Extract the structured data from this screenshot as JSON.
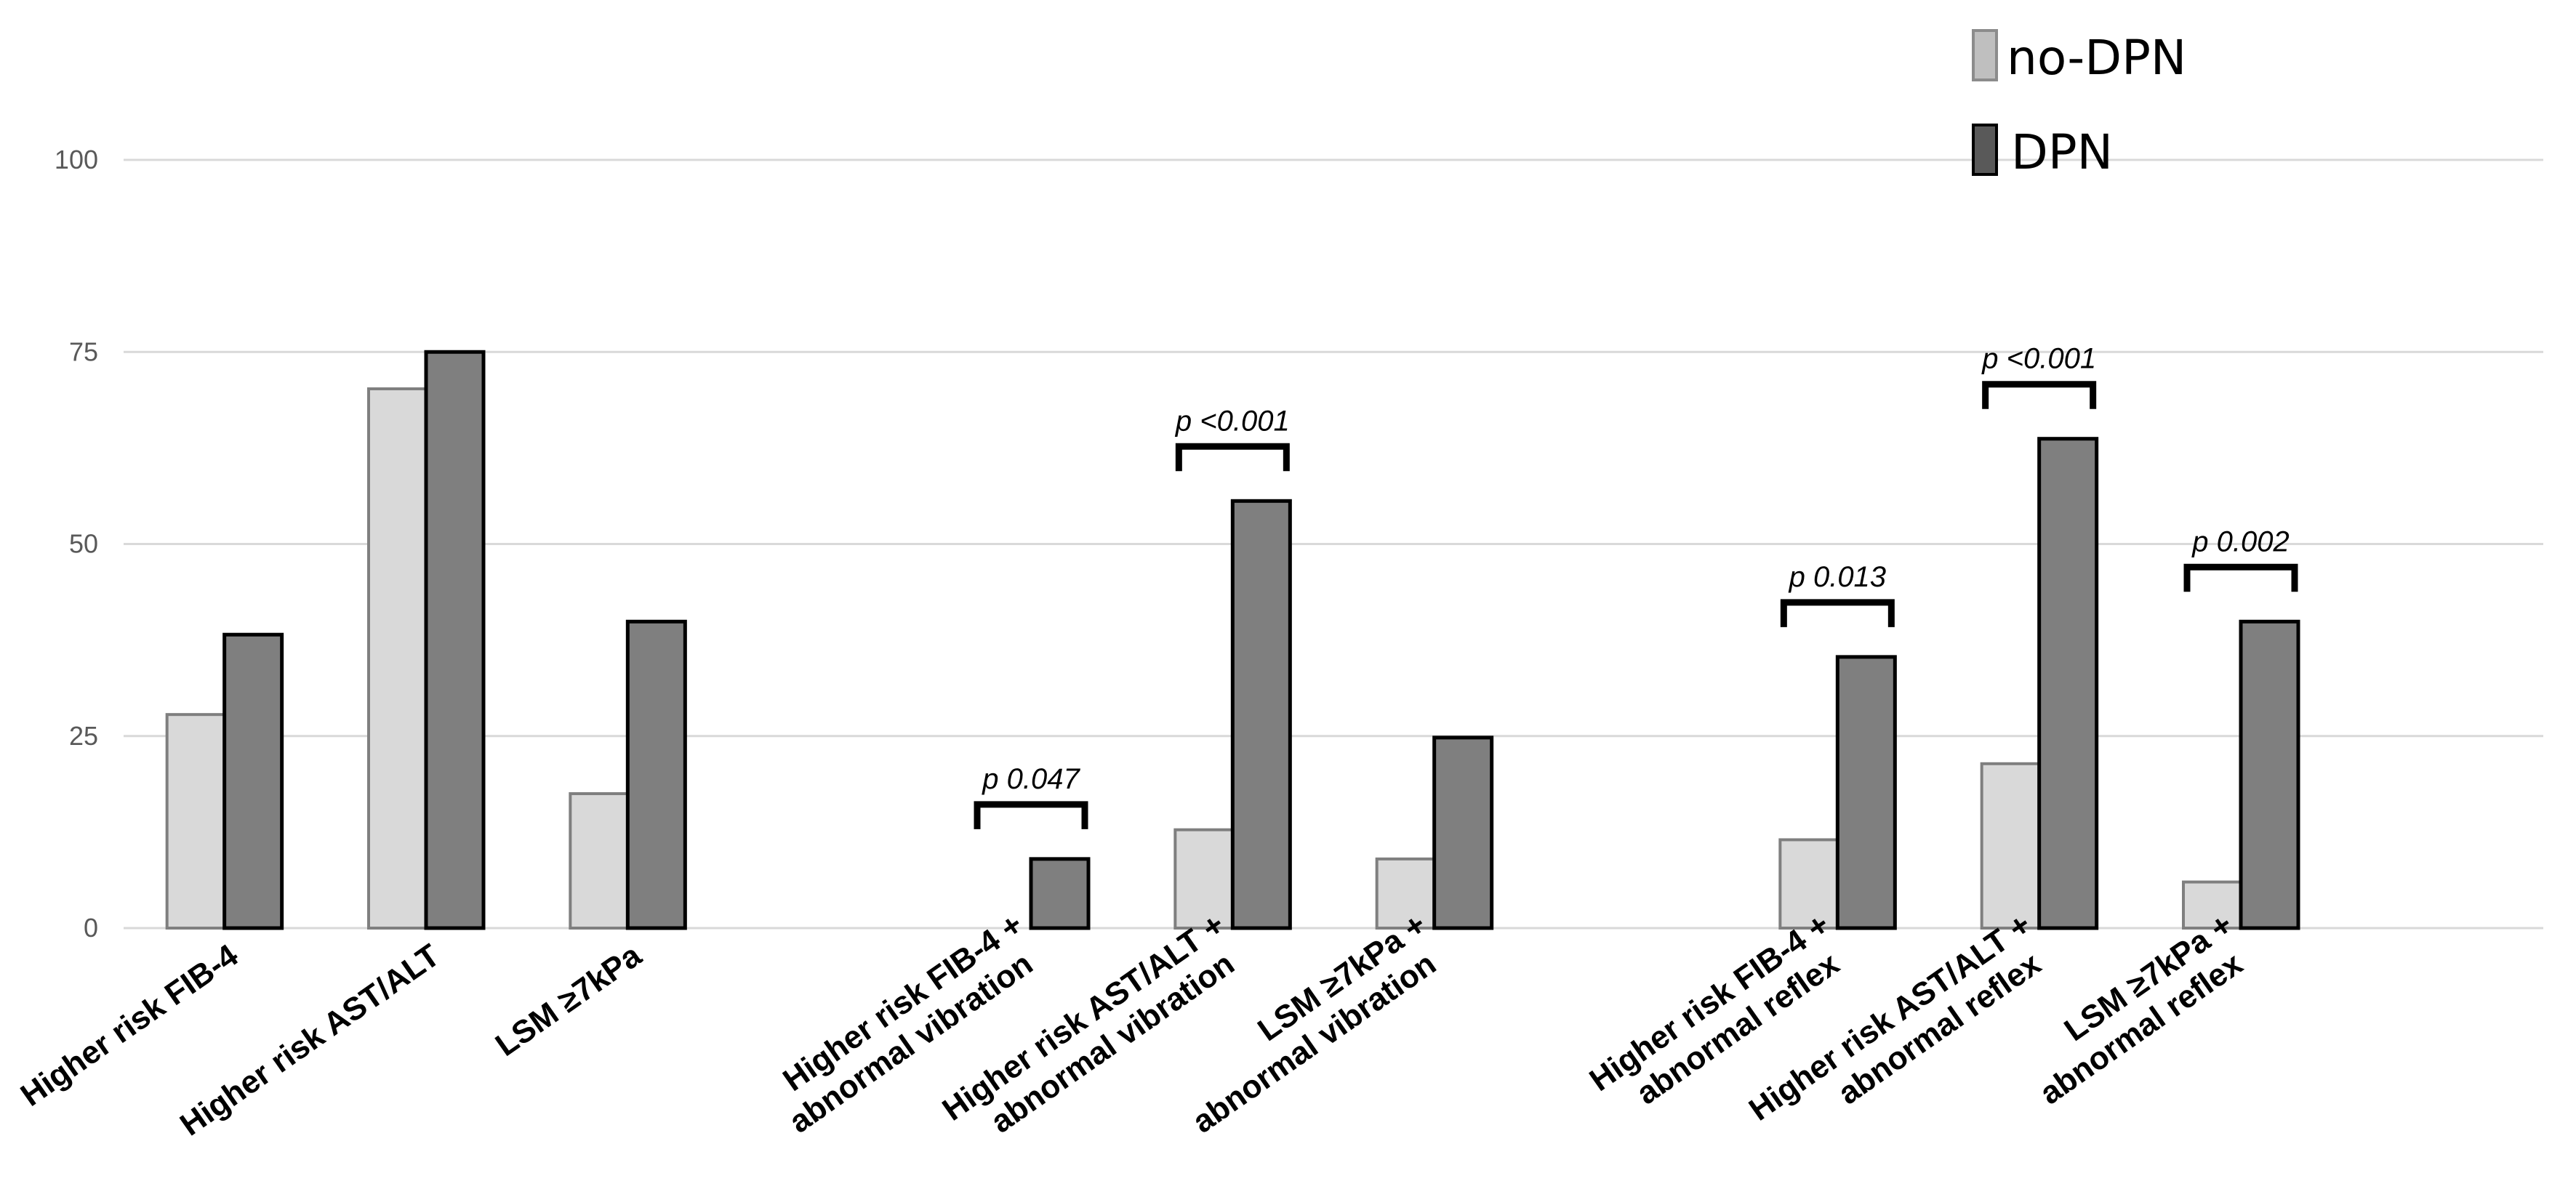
{
  "chart_data": {
    "type": "bar",
    "title": "",
    "xlabel": "",
    "ylabel": "",
    "ylim": [
      0,
      100
    ],
    "yticks": [
      0,
      25,
      50,
      75,
      100
    ],
    "grid": true,
    "legend_position": "top-right",
    "categories": [
      [
        "Higher risk FIB-4"
      ],
      [
        "Higher risk AST/ALT"
      ],
      [
        "LSM ≥7kPa"
      ],
      [
        "Higher risk FIB-4 +",
        "abnormal vibration"
      ],
      [
        "Higher risk AST/ALT +",
        "abnormal vibration"
      ],
      [
        "LSM ≥7kPa +",
        "abnormal vibration"
      ],
      [
        "Higher risk FIB-4 +",
        "abnormal reflex"
      ],
      [
        "Higher risk AST/ALT +",
        "abnormal reflex"
      ],
      [
        "LSM ≥7kPa +",
        "abnormal reflex"
      ]
    ],
    "series": [
      {
        "name": "no-DPN",
        "color": "#d9d9d9",
        "legend_color": "#bfbfbf",
        "values": [
          27.8,
          70.2,
          17.5,
          0,
          12.8,
          9,
          11.5,
          21.4,
          6
        ]
      },
      {
        "name": "DPN",
        "color": "#7f7f7f",
        "legend_color": "#595959",
        "values": [
          38.2,
          75,
          39.9,
          9,
          55.6,
          24.8,
          35.3,
          63.7,
          39.9
        ]
      }
    ],
    "annotations": [
      {
        "category_index": 3,
        "text": "p 0.047"
      },
      {
        "category_index": 4,
        "text": "p <0.001"
      },
      {
        "category_index": 6,
        "text": "p 0.013"
      },
      {
        "category_index": 7,
        "text": "p <0.001"
      },
      {
        "category_index": 8,
        "text": "p 0.002"
      }
    ]
  }
}
